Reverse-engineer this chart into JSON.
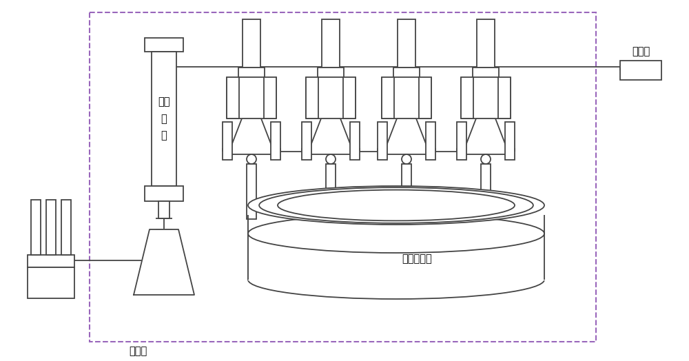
{
  "bg_color": "#ffffff",
  "line_color": "#444444",
  "lw": 1.3,
  "co2_label": "二氧\n化\n碳",
  "hengwen_label": "恒温筱",
  "pump_label": "手摇泵",
  "core_label": "五点法岩心",
  "label_fontsize": 10.5,
  "dash_color": "#9966bb"
}
